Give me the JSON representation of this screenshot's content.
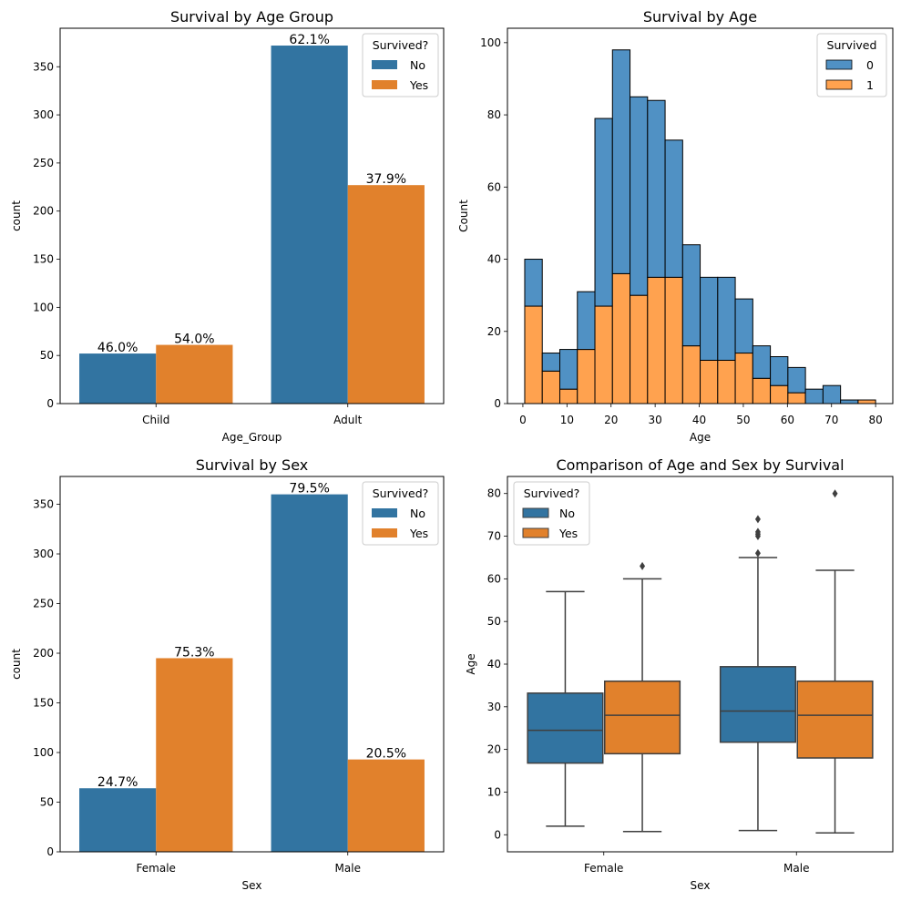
{
  "colors": {
    "no": "#3274a1",
    "yes": "#e1812c",
    "hist_no": "#5091c4",
    "hist_yes": "#ffa24f",
    "box_line": "#3f3f3f"
  },
  "chart_data": [
    {
      "type": "bar",
      "title": "Survival by Age Group",
      "xlabel": "Age_Group",
      "ylabel": "count",
      "categories": [
        "Child",
        "Adult"
      ],
      "series": [
        {
          "name": "No",
          "values": [
            52,
            372
          ],
          "labels": [
            "46.0%",
            "62.1%"
          ]
        },
        {
          "name": "Yes",
          "values": [
            61,
            227
          ],
          "labels": [
            "54.0%",
            "37.9%"
          ]
        }
      ],
      "ylim": [
        0,
        390
      ],
      "yticks": [
        0,
        50,
        100,
        150,
        200,
        250,
        300,
        350
      ],
      "legend": {
        "title": "Survived?",
        "position": "top-right"
      }
    },
    {
      "type": "bar",
      "subtype": "stacked-histogram",
      "title": "Survival by Age",
      "xlabel": "Age",
      "ylabel": "Count",
      "bin_edges": [
        0.42,
        4.4,
        8.38,
        12.36,
        16.34,
        20.32,
        24.3,
        28.28,
        32.26,
        36.24,
        40.21,
        44.19,
        48.17,
        52.15,
        56.13,
        60.11,
        64.09,
        68.07,
        72.05,
        76.03,
        80.0
      ],
      "series": [
        {
          "name": "0",
          "values": [
            13,
            5,
            11,
            16,
            52,
            62,
            55,
            49,
            38,
            28,
            23,
            23,
            15,
            9,
            8,
            7,
            4,
            5,
            1,
            0
          ]
        },
        {
          "name": "1",
          "values": [
            27,
            9,
            4,
            15,
            27,
            36,
            30,
            35,
            35,
            16,
            12,
            12,
            14,
            7,
            5,
            3,
            0,
            0,
            0,
            1
          ]
        }
      ],
      "totals": [
        40,
        14,
        15,
        31,
        79,
        98,
        85,
        84,
        73,
        44,
        35,
        35,
        29,
        16,
        13,
        10,
        4,
        5,
        1,
        1
      ],
      "xlim": [
        -3.5,
        83.9
      ],
      "ylim": [
        0,
        104
      ],
      "xticks": [
        0,
        10,
        20,
        30,
        40,
        50,
        60,
        70,
        80
      ],
      "yticks": [
        0,
        20,
        40,
        60,
        80,
        100
      ],
      "legend": {
        "title": "Survived",
        "position": "top-right"
      }
    },
    {
      "type": "bar",
      "title": "Survival by Sex",
      "xlabel": "Sex",
      "ylabel": "count",
      "categories": [
        "Female",
        "Male"
      ],
      "series": [
        {
          "name": "No",
          "values": [
            64,
            360
          ],
          "labels": [
            "24.7%",
            "79.5%"
          ]
        },
        {
          "name": "Yes",
          "values": [
            195,
            93
          ],
          "labels": [
            "75.3%",
            "20.5%"
          ]
        }
      ],
      "ylim": [
        0,
        378
      ],
      "yticks": [
        0,
        50,
        100,
        150,
        200,
        250,
        300,
        350
      ],
      "legend": {
        "title": "Survived?",
        "position": "top-right"
      }
    },
    {
      "type": "box",
      "title": "Comparison of Age and Sex by Survival",
      "xlabel": "Sex",
      "ylabel": "Age",
      "categories": [
        "Female",
        "Male"
      ],
      "series": [
        {
          "name": "No",
          "boxes": [
            {
              "min": 2,
              "q1": 16.8,
              "median": 24.5,
              "q3": 33.2,
              "max": 57,
              "outliers": []
            },
            {
              "min": 1,
              "q1": 21.7,
              "median": 29,
              "q3": 39.4,
              "max": 65,
              "outliers": [
                66,
                70,
                70.5,
                71,
                74
              ]
            }
          ]
        },
        {
          "name": "Yes",
          "boxes": [
            {
              "min": 0.75,
              "q1": 19,
              "median": 28,
              "q3": 36,
              "max": 60,
              "outliers": [
                63
              ]
            },
            {
              "min": 0.42,
              "q1": 18,
              "median": 28,
              "q3": 36,
              "max": 62,
              "outliers": [
                80
              ]
            }
          ]
        }
      ],
      "ylim": [
        -4,
        84
      ],
      "yticks": [
        0,
        10,
        20,
        30,
        40,
        50,
        60,
        70,
        80
      ],
      "legend": {
        "title": "Survived?",
        "position": "top-left"
      }
    }
  ]
}
